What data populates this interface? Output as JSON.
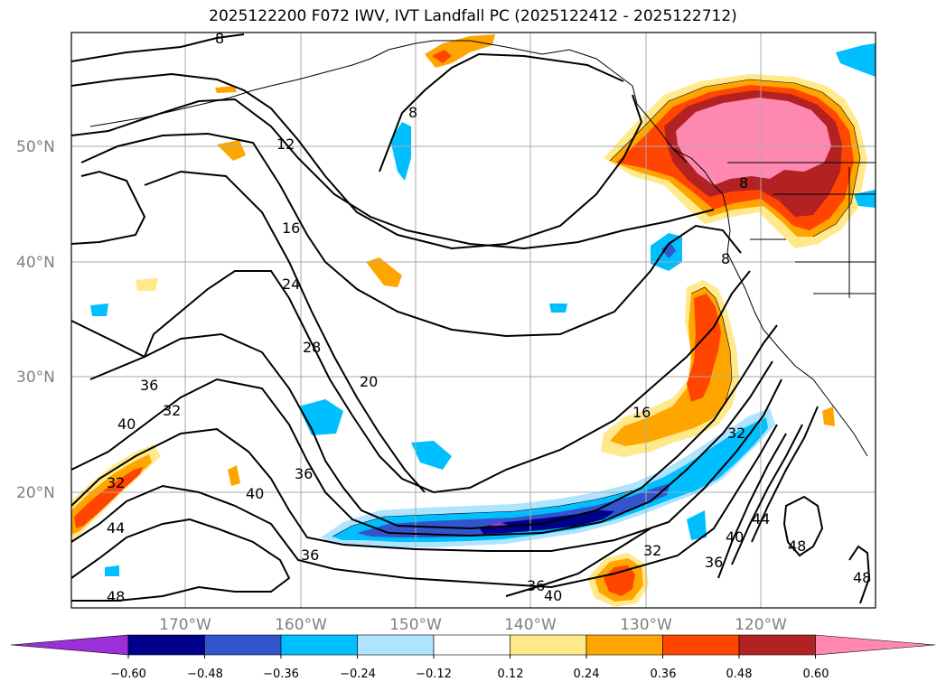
{
  "title": "2025122200 F072 IWV, IVT Landfall PC (2025122412 - 2025122712)",
  "lat_labels": [
    "50°N",
    "40°N",
    "30°N",
    "20°N"
  ],
  "lon_labels": [
    "170°W",
    "160°W",
    "150°W",
    "140°W",
    "130°W",
    "120°W"
  ],
  "colorbar": {
    "tick_labels": [
      "−0.60",
      "−0.48",
      "−0.36",
      "−0.24",
      "−0.12",
      "0.12",
      "0.24",
      "0.36",
      "0.48",
      "0.60"
    ],
    "colors": [
      "#9b30d9",
      "#00008b",
      "#3355cc",
      "#00bfff",
      "#aee4ff",
      "#ffffff",
      "#ffe98a",
      "#ffa500",
      "#ff4500",
      "#b22222",
      "#ff88b0"
    ]
  },
  "iwv_contour_labels": [
    "8",
    "8",
    "8",
    "8",
    "12",
    "16",
    "16",
    "20",
    "24",
    "28",
    "32",
    "32",
    "32",
    "32",
    "36",
    "36",
    "36",
    "36",
    "36",
    "40",
    "40",
    "40",
    "40",
    "44",
    "44",
    "48",
    "48",
    "48"
  ]
}
